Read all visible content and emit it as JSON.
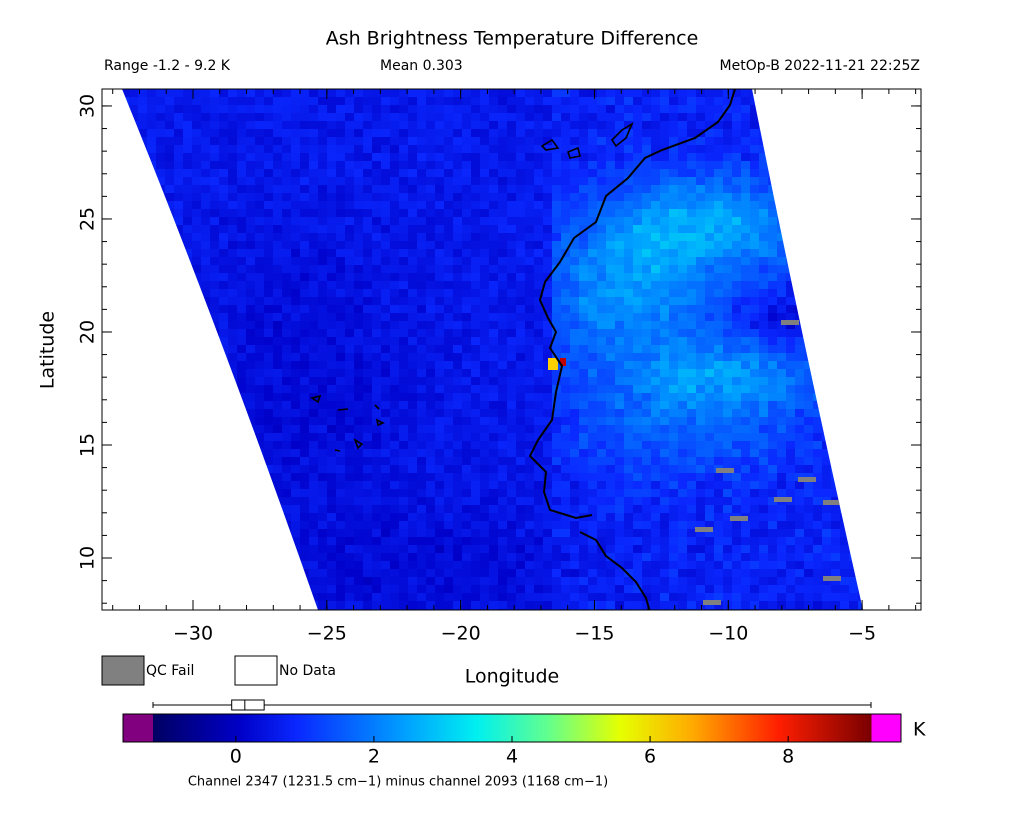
{
  "title": "Ash Brightness Temperature Difference",
  "header": {
    "range": "Range -1.2 - 9.2 K",
    "mean": "Mean 0.303",
    "source": "MetOp-B 2022-11-21 22:25Z"
  },
  "map": {
    "xlabel": "Longitude",
    "ylabel": "Latitude",
    "xlim": [
      -33.4,
      -2.8
    ],
    "ylim": [
      7.7,
      30.75
    ],
    "xticks": [
      {
        "value": -30,
        "label": "−30"
      },
      {
        "value": -25,
        "label": "−25"
      },
      {
        "value": -20,
        "label": "−20"
      },
      {
        "value": -15,
        "label": "−15"
      },
      {
        "value": -10,
        "label": "−10"
      },
      {
        "value": -5,
        "label": "−5"
      }
    ],
    "yticks": [
      10,
      15,
      20,
      25,
      30
    ]
  },
  "legend": [
    {
      "name": "QC Fail",
      "color": "#808080"
    },
    {
      "name": "No Data",
      "color": "#ffffff"
    }
  ],
  "colorbar": {
    "lim": [
      -1.2,
      9.2
    ],
    "ticks": [
      0,
      2,
      4,
      6,
      8
    ],
    "unit": "K",
    "boxplot": {
      "min": -1.2,
      "q1": -0.06,
      "median": 0.13,
      "q3": 0.41,
      "max": 9.2
    }
  },
  "footnote": "Channel 2347 (1231.5 cm−1) minus channel 2093 (1168 cm−1)"
}
